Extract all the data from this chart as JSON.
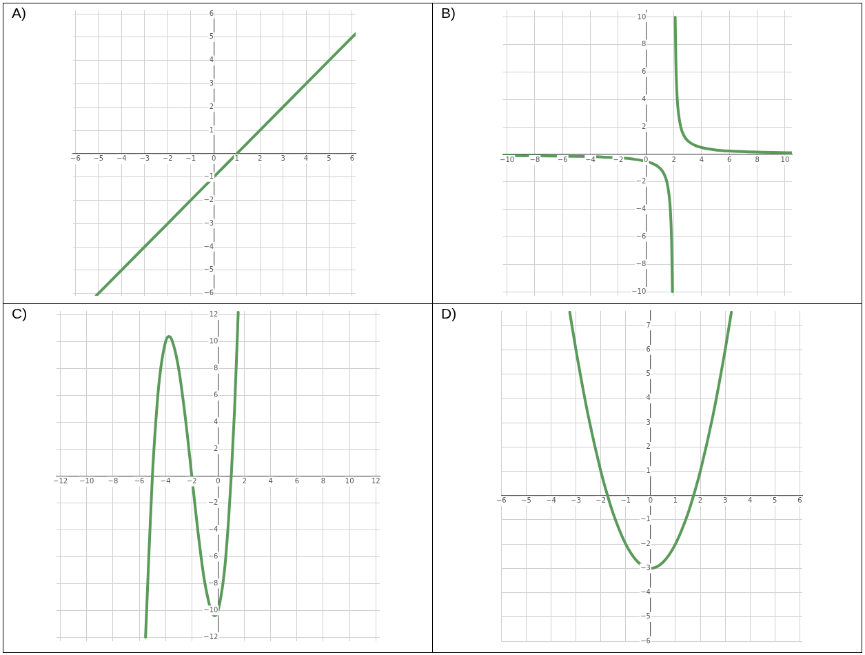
{
  "chart_data": [
    {
      "type": "line",
      "title": "A)",
      "grid": true,
      "marker": "none",
      "line_style": "solid",
      "xlim": [
        -6.1,
        6.15
      ],
      "ylim": [
        -6.1,
        6.15
      ],
      "xticks": [
        -6,
        -5,
        -4,
        -3,
        -2,
        -1,
        0,
        1,
        2,
        3,
        4,
        5,
        6
      ],
      "yticks": [
        -6,
        -5,
        -4,
        -3,
        -2,
        -1,
        1,
        2,
        3,
        4,
        5,
        6
      ],
      "series": [
        {
          "color": "#5a9a5a",
          "x": [
            -5.1,
            -3,
            -1,
            0,
            1,
            3,
            5,
            6.15
          ],
          "values": [
            -6.1,
            -4,
            -2,
            -1,
            0,
            2,
            4,
            5.15
          ]
        }
      ]
    },
    {
      "type": "line",
      "title": "B)",
      "grid": true,
      "marker": "none",
      "line_style": "solid",
      "xlim": [
        -10.3,
        10.5
      ],
      "ylim": [
        -10.3,
        10.5
      ],
      "xticks": [
        -10,
        -8,
        -6,
        -4,
        -2,
        0,
        2,
        4,
        6,
        8,
        10
      ],
      "yticks": [
        -10,
        -8,
        -6,
        -4,
        -2,
        2,
        4,
        6,
        8,
        10
      ],
      "series": [
        {
          "color": "#5a9a5a",
          "x": [
            -10.3,
            -7,
            -5,
            -3,
            -1,
            0.5,
            1,
            1.25,
            1.5,
            1.65,
            1.75,
            1.85,
            1.9
          ],
          "values": [
            -0.08,
            -0.11,
            -0.14,
            -0.2,
            -0.33,
            -0.67,
            -1,
            -1.33,
            -2,
            -2.9,
            -4,
            -6.7,
            -10
          ]
        },
        {
          "color": "#5a9a5a",
          "x": [
            2.1,
            2.15,
            2.25,
            2.35,
            2.5,
            2.75,
            3,
            3.5,
            4,
            5,
            6,
            8,
            10.5
          ],
          "values": [
            10,
            6.7,
            4,
            2.9,
            2,
            1.33,
            1,
            0.67,
            0.5,
            0.33,
            0.25,
            0.17,
            0.12
          ]
        }
      ]
    },
    {
      "type": "line",
      "title": "C)",
      "grid": true,
      "marker": "none",
      "line_style": "solid",
      "xlim": [
        -12.3,
        12.3
      ],
      "ylim": [
        -12.3,
        12.3
      ],
      "xticks": [
        -12,
        -10,
        -8,
        -6,
        -4,
        -2,
        0,
        2,
        4,
        6,
        8,
        10,
        12
      ],
      "yticks": [
        -12,
        -10,
        -8,
        -6,
        -4,
        -2,
        2,
        4,
        6,
        8,
        10,
        12
      ],
      "series": [
        {
          "color": "#5a9a5a",
          "x": [
            -5.52,
            -5.25,
            -5,
            -4.8,
            -4.5,
            -4,
            -3.73,
            -3.5,
            -3,
            -2.5,
            -2,
            -1.5,
            -1,
            -0.27,
            0,
            0.5,
            0.8,
            1,
            1.25,
            1.5,
            1.53
          ],
          "values": [
            -12,
            -5.5,
            0,
            3.2,
            6.9,
            10,
            10.4,
            10.1,
            8,
            4.4,
            0,
            -4.4,
            -8,
            -10.4,
            -10,
            -6.9,
            -3.2,
            0,
            4.9,
            11.4,
            12.2
          ]
        }
      ]
    },
    {
      "type": "line",
      "title": "D)",
      "grid": true,
      "marker": "none",
      "line_style": "solid",
      "xlim": [
        -6,
        6.1
      ],
      "ylim": [
        -6,
        7.6
      ],
      "xticks": [
        -6,
        -5,
        -4,
        -3,
        -2,
        -1,
        0,
        1,
        2,
        3,
        4,
        5,
        6
      ],
      "yticks": [
        -6,
        -5,
        -4,
        -3,
        -2,
        -1,
        1,
        2,
        3,
        4,
        5,
        6,
        7
      ],
      "series": [
        {
          "color": "#5a9a5a",
          "x": [
            -3.25,
            -3,
            -2.5,
            -2,
            -1.73,
            -1.5,
            -1,
            -0.5,
            0,
            0.5,
            1,
            1.5,
            1.73,
            2,
            2.5,
            3,
            3.25
          ],
          "values": [
            7.55,
            6,
            3.25,
            1,
            0,
            -0.75,
            -2,
            -2.75,
            -3,
            -2.75,
            -2,
            -0.75,
            0,
            1,
            3.25,
            6,
            7.55
          ]
        }
      ]
    }
  ]
}
